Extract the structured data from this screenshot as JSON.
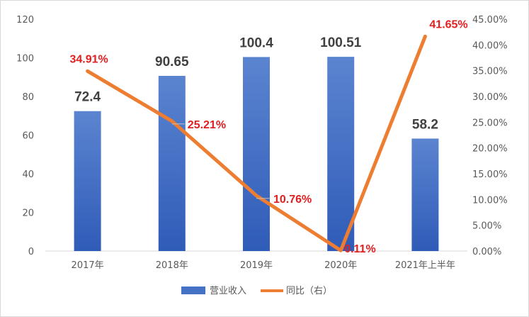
{
  "chart_data": {
    "type": "bar",
    "categories": [
      "2017年",
      "2018年",
      "2019年",
      "2020年",
      "2021年上半年"
    ],
    "series": [
      {
        "name": "营业收入",
        "type": "bar",
        "axis": "left",
        "values": [
          72.4,
          90.65,
          100.4,
          100.51,
          58.2
        ],
        "labels": [
          "72.4",
          "90.65",
          "100.4",
          "100.51",
          "58.2"
        ],
        "color": "#4472c4"
      },
      {
        "name": "同比（右）",
        "type": "line",
        "axis": "right",
        "values": [
          34.91,
          25.21,
          10.76,
          0.11,
          41.65
        ],
        "labels": [
          "34.91%",
          "25.21%",
          "10.76%",
          "0.11%",
          "41.65%"
        ],
        "color": "#ed7d31"
      }
    ],
    "y_left": {
      "ylim": [
        0,
        120
      ],
      "ticks": [
        "0",
        "20",
        "40",
        "60",
        "80",
        "100",
        "120"
      ]
    },
    "y_right": {
      "ylim": [
        0,
        45
      ],
      "ticks": [
        "0.00%",
        "5.00%",
        "10.00%",
        "15.00%",
        "20.00%",
        "25.00%",
        "30.00%",
        "35.00%",
        "40.00%",
        "45.00%"
      ]
    },
    "legend": {
      "position": "bottom",
      "items": [
        "营业收入",
        "同比（右）"
      ]
    },
    "grid": false,
    "label_color": "#e02020"
  }
}
